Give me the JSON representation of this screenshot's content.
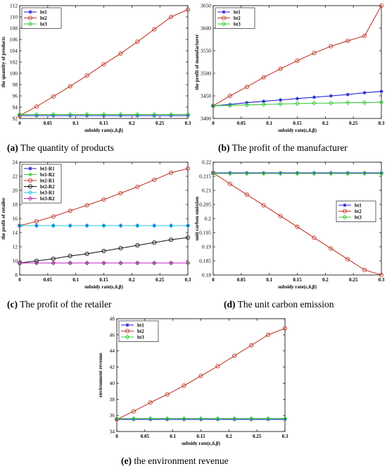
{
  "chart_data": [
    {
      "id": "a",
      "type": "line",
      "caption_letter": "(a)",
      "caption_text": " The quantity of products",
      "xlabel": "subsidy rate(ε,δ,β)",
      "ylabel": "the quantity of products",
      "title": "",
      "x": [
        0,
        0.03,
        0.06,
        0.09,
        0.12,
        0.15,
        0.18,
        0.21,
        0.24,
        0.27,
        0.3
      ],
      "xlim": [
        0,
        0.3
      ],
      "ylim": [
        92,
        112
      ],
      "xticks": [
        "0",
        "0.05",
        "0.1",
        "0.15",
        "0.2",
        "0.25",
        "0.3"
      ],
      "xtick_values": [
        0,
        0.05,
        0.1,
        0.15,
        0.2,
        0.25,
        0.3
      ],
      "yticks": [
        "92",
        "94",
        "96",
        "98",
        "100",
        "102",
        "104",
        "106",
        "108",
        "110",
        "112"
      ],
      "ytick_values": [
        92,
        94,
        96,
        98,
        100,
        102,
        104,
        106,
        108,
        110,
        112
      ],
      "legend_position": "top-left",
      "series": [
        {
          "name": "bt1",
          "color": "#1f1fd6",
          "marker": "star",
          "values": [
            92.5,
            92.5,
            92.5,
            92.5,
            92.5,
            92.5,
            92.5,
            92.5,
            92.5,
            92.5,
            92.5
          ]
        },
        {
          "name": "bt2",
          "color": "#c0392b",
          "marker": "circle",
          "values": [
            92.5,
            94.1,
            95.9,
            97.7,
            99.6,
            101.6,
            103.5,
            105.6,
            107.8,
            110.0,
            111.3
          ]
        },
        {
          "name": "bt3",
          "color": "#37c837",
          "marker": "diamond",
          "values": [
            92.7,
            92.7,
            92.7,
            92.7,
            92.7,
            92.7,
            92.7,
            92.7,
            92.7,
            92.7,
            92.7
          ]
        }
      ]
    },
    {
      "id": "b",
      "type": "line",
      "caption_letter": "(b)",
      "caption_text": " The profit of the manufacturer",
      "xlabel": "subsidy rate(ε,δ,β)",
      "ylabel": "the profit of manufacturer",
      "title": "",
      "x": [
        0,
        0.03,
        0.06,
        0.09,
        0.12,
        0.15,
        0.18,
        0.21,
        0.24,
        0.27,
        0.3
      ],
      "xlim": [
        0,
        0.3
      ],
      "ylim": [
        3400,
        3650
      ],
      "xticks": [
        "0",
        "0.05",
        "0.1",
        "0.15",
        "0.2",
        "0.25",
        "0.3"
      ],
      "xtick_values": [
        0,
        0.05,
        0.1,
        0.15,
        0.2,
        0.25,
        0.3
      ],
      "yticks": [
        "3400",
        "3450",
        "3500",
        "3550",
        "3600",
        "3650"
      ],
      "ytick_values": [
        3400,
        3450,
        3500,
        3550,
        3600,
        3650
      ],
      "legend_position": "top-left",
      "series": [
        {
          "name": "bt1",
          "color": "#1f1fd6",
          "marker": "star",
          "values": [
            3428,
            3431,
            3435,
            3438,
            3441,
            3444,
            3447,
            3450,
            3453,
            3457,
            3460
          ]
        },
        {
          "name": "bt2",
          "color": "#c0392b",
          "marker": "circle",
          "values": [
            3428,
            3450,
            3470,
            3491,
            3510,
            3528,
            3545,
            3560,
            3572,
            3583,
            3650
          ]
        },
        {
          "name": "bt3",
          "color": "#37c837",
          "marker": "diamond",
          "values": [
            3428,
            3429,
            3430,
            3431,
            3432,
            3433,
            3434,
            3434,
            3435,
            3435,
            3436
          ]
        }
      ]
    },
    {
      "id": "c",
      "type": "line",
      "caption_letter": "(c)",
      "caption_text": " The profit of the retailer",
      "xlabel": "subsidy rate(ε,δ,β)",
      "ylabel": "the profit of retailer",
      "title": "",
      "x": [
        0,
        0.03,
        0.06,
        0.09,
        0.12,
        0.15,
        0.18,
        0.21,
        0.24,
        0.27,
        0.3
      ],
      "xlim": [
        0,
        0.3
      ],
      "ylim": [
        8,
        24
      ],
      "xticks": [
        "0",
        "0.05",
        "0.1",
        "0.15",
        "0.2",
        "0.25",
        "0.3"
      ],
      "xtick_values": [
        0,
        0.05,
        0.1,
        0.15,
        0.2,
        0.25,
        0.3
      ],
      "yticks": [
        "8",
        "10",
        "12",
        "14",
        "16",
        "18",
        "20",
        "22",
        "24"
      ],
      "ytick_values": [
        8,
        10,
        12,
        14,
        16,
        18,
        20,
        22,
        24
      ],
      "legend_position": "top-left",
      "series": [
        {
          "name": "bt1-R1",
          "color": "#1f1fd6",
          "marker": "star",
          "values": [
            15.0,
            15.0,
            15.0,
            15.0,
            15.0,
            15.0,
            15.0,
            15.0,
            15.0,
            15.0,
            15.0
          ]
        },
        {
          "name": "bt1-R2",
          "color": "#37c837",
          "marker": "star",
          "values": [
            9.7,
            9.7,
            9.7,
            9.7,
            9.7,
            9.7,
            9.7,
            9.7,
            9.7,
            9.7,
            9.7
          ]
        },
        {
          "name": "bt2-R1",
          "color": "#c0392b",
          "marker": "circle",
          "values": [
            15.0,
            15.6,
            16.3,
            17.1,
            17.9,
            18.7,
            19.6,
            20.5,
            21.5,
            22.5,
            23.1
          ]
        },
        {
          "name": "bt2-R2",
          "color": "#111111",
          "marker": "circle",
          "values": [
            9.7,
            10.0,
            10.3,
            10.7,
            11.0,
            11.4,
            11.8,
            12.2,
            12.6,
            13.0,
            13.3
          ]
        },
        {
          "name": "bt3-R1",
          "color": "#22c7e0",
          "marker": "diamond",
          "values": [
            15.0,
            15.0,
            15.0,
            15.0,
            15.0,
            15.0,
            15.0,
            15.0,
            15.0,
            15.0,
            15.0
          ]
        },
        {
          "name": "bt3-R2",
          "color": "#c021c0",
          "marker": "diamond",
          "values": [
            9.7,
            9.7,
            9.7,
            9.7,
            9.7,
            9.7,
            9.7,
            9.7,
            9.7,
            9.7,
            9.7
          ]
        }
      ]
    },
    {
      "id": "d",
      "type": "line",
      "caption_letter": "(d)",
      "caption_text": " The unit carbon emission",
      "xlabel": "subsidy rate(ε,δ,β)",
      "ylabel": "unit carbon emission",
      "title": "",
      "x": [
        0,
        0.03,
        0.06,
        0.09,
        0.12,
        0.15,
        0.18,
        0.21,
        0.24,
        0.27,
        0.3
      ],
      "xlim": [
        0,
        0.3
      ],
      "ylim": [
        0.18,
        0.22
      ],
      "xticks": [
        "0",
        "0.05",
        "0.1",
        "0.15",
        "0.2",
        "0.25",
        "0.3"
      ],
      "xtick_values": [
        0,
        0.05,
        0.1,
        0.15,
        0.2,
        0.25,
        0.3
      ],
      "yticks": [
        "0.18",
        "0.185",
        "0.19",
        "0.195",
        "0.2",
        "0.205",
        "0.21",
        "0.215",
        "0.22"
      ],
      "ytick_values": [
        0.18,
        0.185,
        0.19,
        0.195,
        0.2,
        0.205,
        0.21,
        0.215,
        0.22
      ],
      "legend_position": "center-right",
      "series": [
        {
          "name": "bt1",
          "color": "#1f1fd6",
          "marker": "star",
          "values": [
            0.2162,
            0.2162,
            0.2162,
            0.2162,
            0.2162,
            0.2162,
            0.2162,
            0.2162,
            0.2162,
            0.2162,
            0.2162
          ]
        },
        {
          "name": "bt2",
          "color": "#c0392b",
          "marker": "circle",
          "values": [
            0.2162,
            0.2123,
            0.2085,
            0.2047,
            0.2009,
            0.1971,
            0.1932,
            0.1894,
            0.1856,
            0.1818,
            0.18
          ]
        },
        {
          "name": "bt3",
          "color": "#37c837",
          "marker": "diamond",
          "values": [
            0.216,
            0.216,
            0.216,
            0.216,
            0.216,
            0.216,
            0.216,
            0.216,
            0.216,
            0.216,
            0.216
          ]
        }
      ]
    },
    {
      "id": "e",
      "type": "line",
      "caption_letter": "(e)",
      "caption_text": " the environment revenue",
      "xlabel": "subsidy rate(ε,δ,β)",
      "ylabel": "environment revenue",
      "title": "",
      "x": [
        0,
        0.03,
        0.06,
        0.09,
        0.12,
        0.15,
        0.18,
        0.21,
        0.24,
        0.27,
        0.3
      ],
      "xlim": [
        0,
        0.3
      ],
      "ylim": [
        34,
        48
      ],
      "xticks": [
        "0",
        "0.05",
        "0.1",
        "0.15",
        "0.2",
        "0.25",
        "0.3"
      ],
      "xtick_values": [
        0,
        0.05,
        0.1,
        0.15,
        0.2,
        0.25,
        0.3
      ],
      "yticks": [
        "34",
        "36",
        "38",
        "40",
        "42",
        "44",
        "46",
        "48"
      ],
      "ytick_values": [
        34,
        36,
        38,
        40,
        42,
        44,
        46,
        48
      ],
      "legend_position": "top-left",
      "series": [
        {
          "name": "bt1",
          "color": "#1f1fd6",
          "marker": "star",
          "values": [
            35.5,
            35.5,
            35.5,
            35.5,
            35.5,
            35.5,
            35.5,
            35.5,
            35.5,
            35.5,
            35.5
          ]
        },
        {
          "name": "bt2",
          "color": "#c0392b",
          "marker": "circle",
          "values": [
            35.5,
            36.5,
            37.6,
            38.6,
            39.7,
            40.9,
            42.1,
            43.4,
            44.7,
            46.0,
            46.8
          ]
        },
        {
          "name": "bt3",
          "color": "#37c837",
          "marker": "diamond",
          "values": [
            35.6,
            35.6,
            35.6,
            35.6,
            35.6,
            35.6,
            35.6,
            35.6,
            35.6,
            35.6,
            35.6
          ]
        }
      ]
    }
  ]
}
